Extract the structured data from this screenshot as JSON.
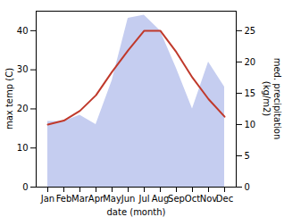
{
  "chart_data": {
    "type": "line",
    "categories": [
      "Jan",
      "Feb",
      "Mar",
      "Apr",
      "May",
      "Jun",
      "Jul",
      "Aug",
      "Sep",
      "Oct",
      "Nov",
      "Dec"
    ],
    "series": [
      {
        "type": "area",
        "axis": "y2",
        "color": "#c5cdf0",
        "values": [
          10.5,
          10.5,
          11.5,
          10.0,
          17.0,
          27.0,
          27.5,
          25.0,
          19.0,
          12.5,
          20.0,
          16.0
        ]
      },
      {
        "type": "line",
        "color": "#c0392b",
        "values": [
          16.0,
          17.0,
          19.5,
          23.5,
          29.5,
          35.0,
          40.0,
          40.0,
          34.5,
          28.0,
          22.5,
          18.0
        ]
      }
    ],
    "xlabel": "date (month)",
    "ylabel": "max temp (C)",
    "y2label": "med. precipitation\n(kg/m2)",
    "ylim": [
      0,
      45
    ],
    "yticks": [
      0,
      10,
      20,
      30,
      40
    ],
    "y2lim": [
      0,
      28.125
    ],
    "y2ticks": [
      0,
      5,
      10,
      15,
      20,
      25
    ],
    "grid": false
  }
}
